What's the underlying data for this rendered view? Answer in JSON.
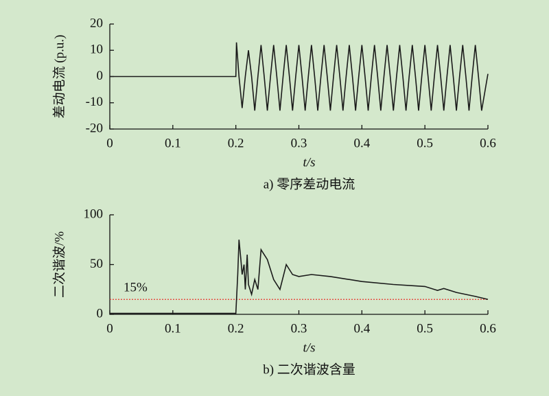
{
  "chart_data": [
    {
      "type": "line",
      "xlabel": "t/s",
      "ylabel": "差动电流 (p.u.)",
      "caption": "a) 零序差动电流",
      "xlim": [
        0,
        0.6
      ],
      "xticks": [
        0,
        0.1,
        0.2,
        0.3,
        0.4,
        0.5,
        0.6
      ],
      "ylim": [
        -20,
        20
      ],
      "yticks": [
        -20,
        -10,
        0,
        10,
        20
      ],
      "series": [
        {
          "color": "#1a1a1a",
          "x": [
            0,
            0.2,
            0.201,
            0.205,
            0.21,
            0.215,
            0.22,
            0.225,
            0.23,
            0.235,
            0.24,
            0.245,
            0.25,
            0.255,
            0.26,
            0.265,
            0.27,
            0.275,
            0.28,
            0.285,
            0.29,
            0.295,
            0.3,
            0.305,
            0.31,
            0.315,
            0.32,
            0.325,
            0.33,
            0.335,
            0.34,
            0.345,
            0.35,
            0.355,
            0.36,
            0.365,
            0.37,
            0.375,
            0.38,
            0.385,
            0.39,
            0.395,
            0.4,
            0.405,
            0.41,
            0.415,
            0.42,
            0.425,
            0.43,
            0.435,
            0.44,
            0.445,
            0.45,
            0.455,
            0.46,
            0.465,
            0.47,
            0.475,
            0.48,
            0.485,
            0.49,
            0.495,
            0.5,
            0.505,
            0.51,
            0.515,
            0.52,
            0.525,
            0.53,
            0.535,
            0.54,
            0.545,
            0.55,
            0.555,
            0.56,
            0.565,
            0.57,
            0.575,
            0.58,
            0.585,
            0.59,
            0.595,
            0.6
          ],
          "values": [
            0,
            0,
            13,
            0,
            -12,
            0,
            10,
            0,
            -13,
            0,
            12,
            0,
            -13,
            0,
            12,
            0,
            -13,
            0,
            12,
            0,
            -13,
            0,
            12,
            0,
            -13,
            0,
            12,
            0,
            -13,
            0,
            12,
            0,
            -13,
            0,
            12,
            0,
            -13,
            0,
            12,
            0,
            -13,
            0,
            12,
            0,
            -13,
            0,
            12,
            0,
            -13,
            0,
            12,
            0,
            -13,
            0,
            12,
            0,
            -13,
            0,
            12,
            0,
            -13,
            0,
            12,
            0,
            -13,
            0,
            12,
            0,
            -13,
            0,
            12,
            0,
            -13,
            0,
            12,
            0,
            -13,
            0,
            12,
            0,
            -13,
            -6,
            1
          ]
        }
      ]
    },
    {
      "type": "line",
      "xlabel": "t/s",
      "ylabel": "二次谐波/%",
      "caption": "b) 二次谐波含量",
      "xlim": [
        0,
        0.6
      ],
      "xticks": [
        0,
        0.1,
        0.2,
        0.3,
        0.4,
        0.5,
        0.6
      ],
      "ylim": [
        0,
        100
      ],
      "yticks": [
        0,
        50,
        100
      ],
      "threshold": {
        "value": 15,
        "label": "15%",
        "color": "#e8342c"
      },
      "series": [
        {
          "color": "#1a1a1a",
          "x": [
            0,
            0.2,
            0.203,
            0.205,
            0.208,
            0.21,
            0.213,
            0.215,
            0.218,
            0.22,
            0.225,
            0.23,
            0.235,
            0.24,
            0.25,
            0.26,
            0.27,
            0.28,
            0.285,
            0.29,
            0.3,
            0.32,
            0.35,
            0.4,
            0.45,
            0.5,
            0.52,
            0.53,
            0.55,
            0.58,
            0.6
          ],
          "values": [
            1,
            1,
            40,
            75,
            55,
            40,
            50,
            25,
            60,
            30,
            20,
            35,
            25,
            65,
            55,
            35,
            25,
            50,
            45,
            40,
            38,
            40,
            38,
            33,
            30,
            28,
            24,
            26,
            22,
            18,
            15
          ]
        }
      ]
    }
  ]
}
